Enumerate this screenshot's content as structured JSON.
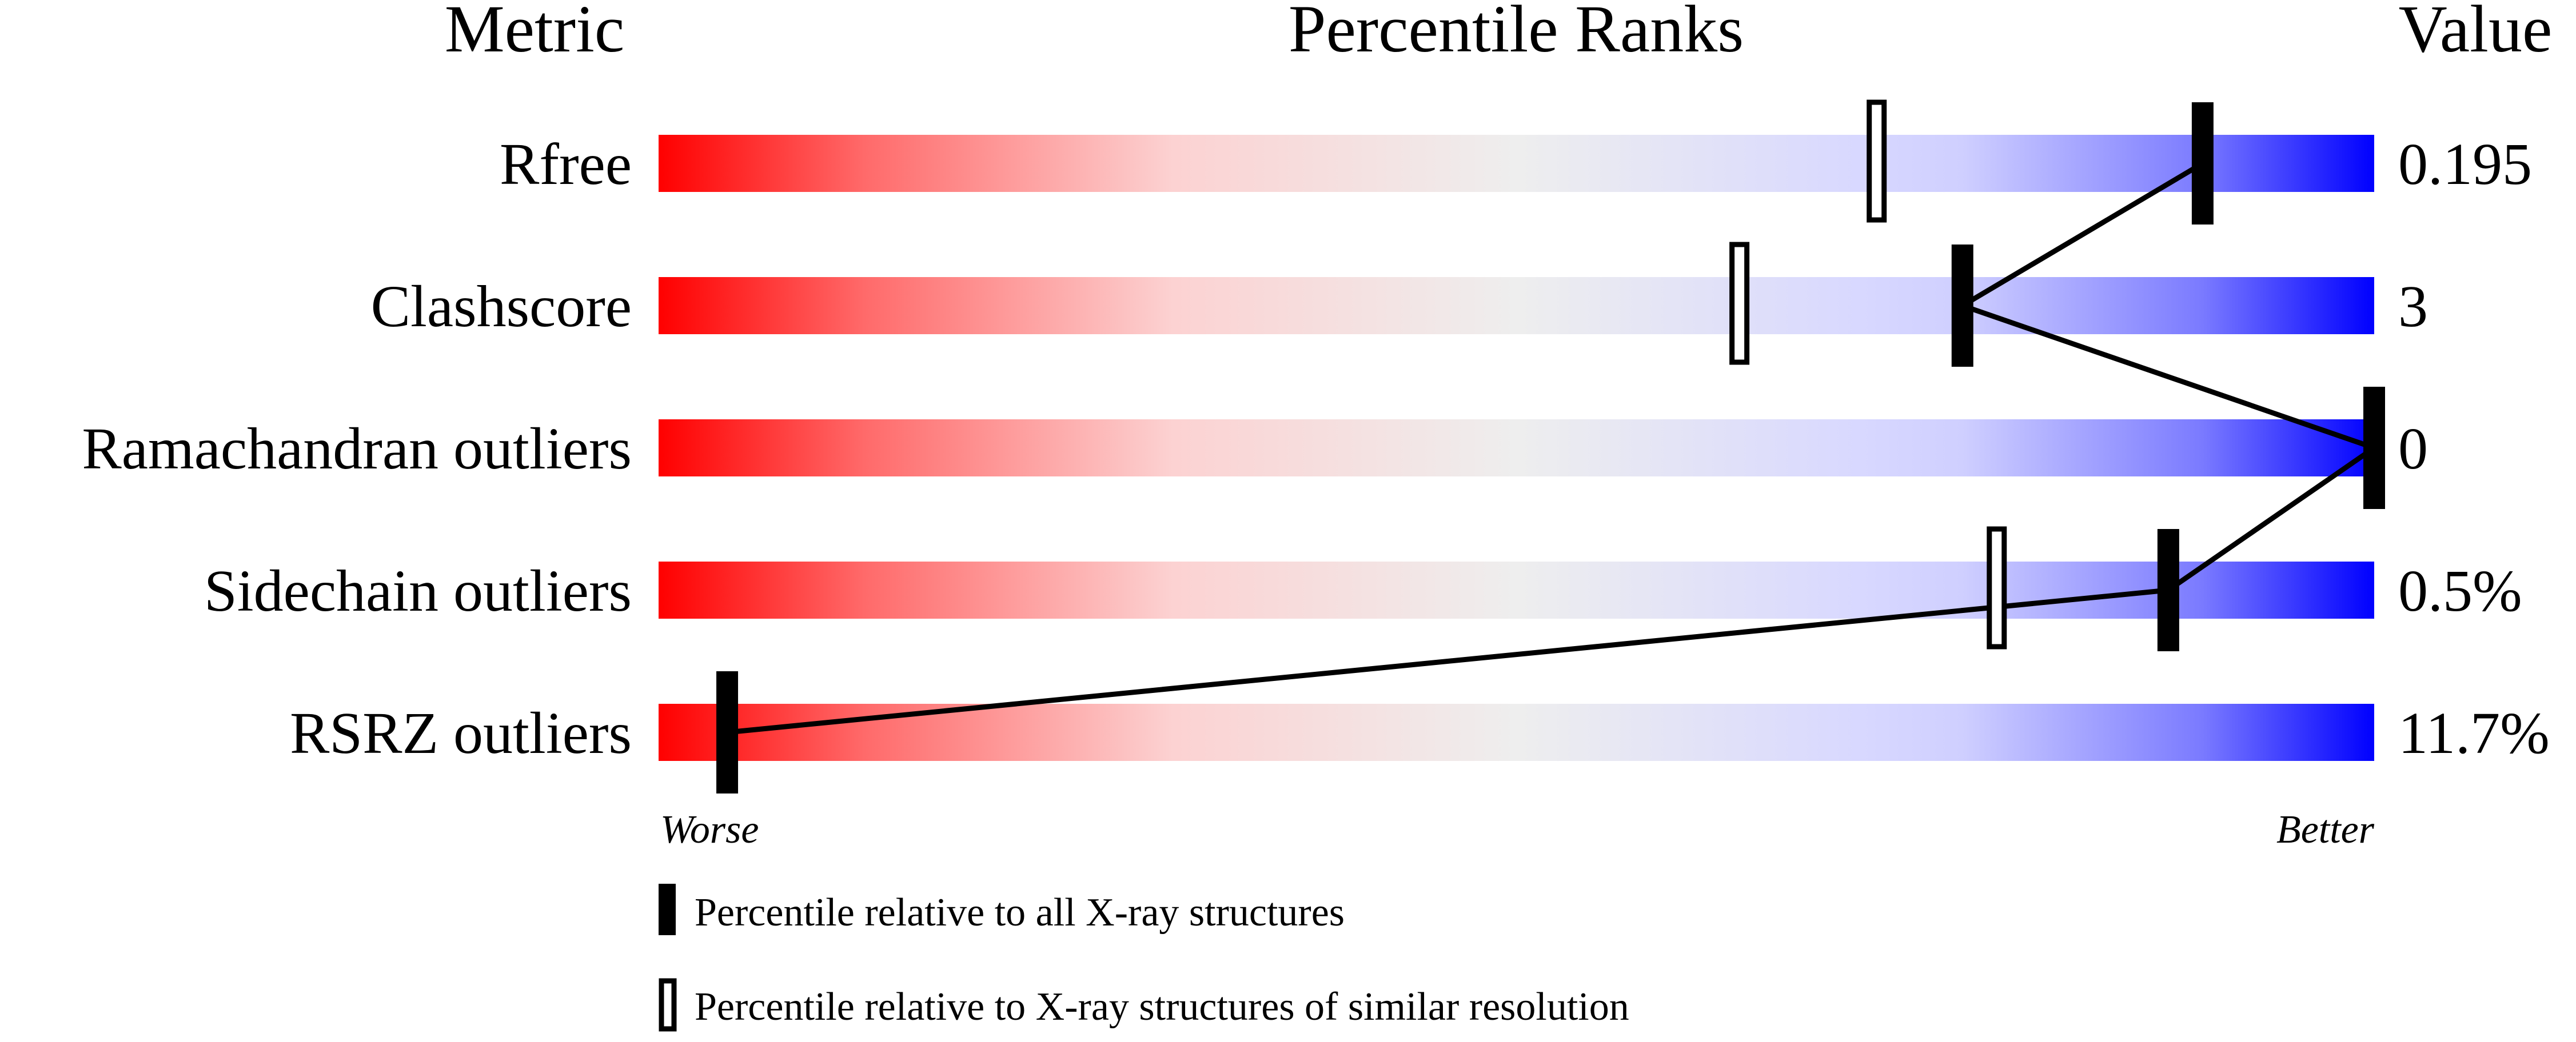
{
  "chart_data": {
    "type": "bar",
    "headers": {
      "metric": "Metric",
      "ranks": "Percentile Ranks",
      "value": "Value"
    },
    "metrics": [
      {
        "name": "Rfree",
        "value": "0.195",
        "percentile_all": 90,
        "percentile_similar": 71
      },
      {
        "name": "Clashscore",
        "value": "3",
        "percentile_all": 76,
        "percentile_similar": 63
      },
      {
        "name": "Ramachandran outliers",
        "value": "0",
        "percentile_all": 100,
        "percentile_similar": null
      },
      {
        "name": "Sidechain outliers",
        "value": "0.5%",
        "percentile_all": 88,
        "percentile_similar": 78
      },
      {
        "name": "RSRZ outliers",
        "value": "11.7%",
        "percentile_all": 4,
        "percentile_similar": null
      }
    ],
    "xlim": [
      0,
      100
    ],
    "axis_labels": {
      "worse": "Worse",
      "better": "Better"
    },
    "legend": {
      "all": "Percentile relative to all X-ray structures",
      "similar": "Percentile relative to X-ray structures of similar resolution"
    },
    "colors": {
      "worse": "#ff0000",
      "middle": "#eeeeee",
      "better": "#0000ff",
      "marker": "#000000"
    }
  }
}
